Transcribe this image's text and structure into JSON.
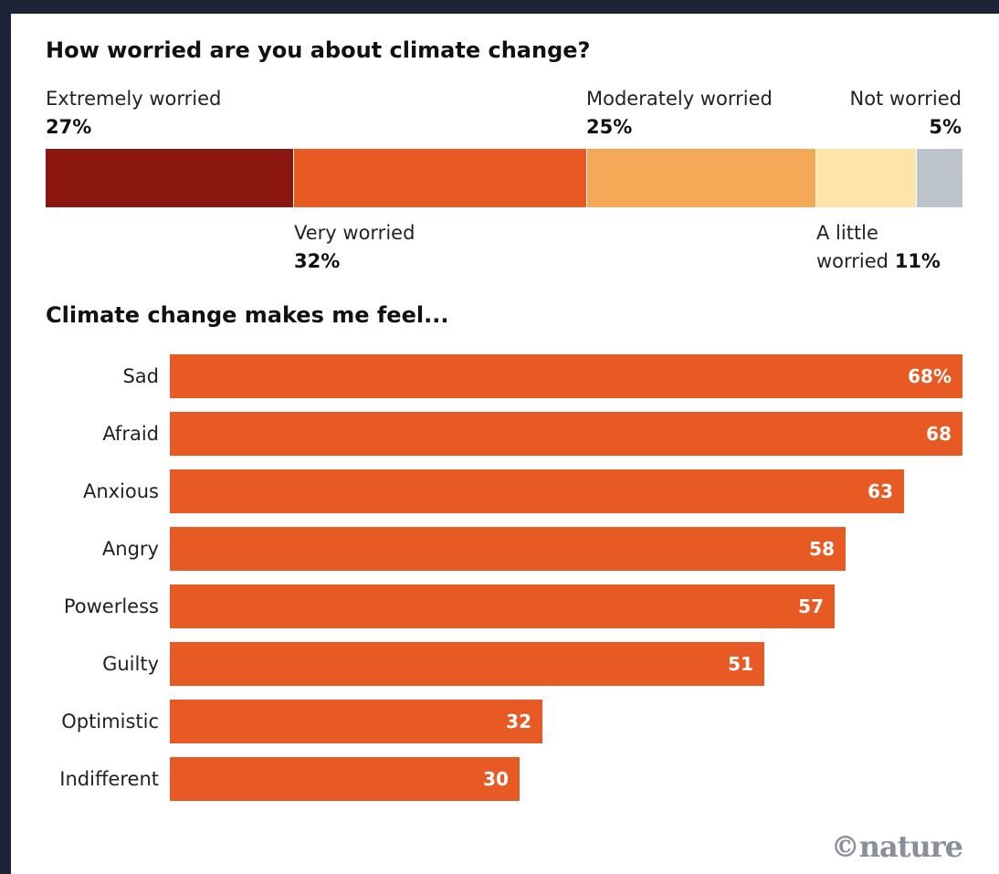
{
  "chart_data": [
    {
      "type": "bar",
      "stacked": true,
      "orientation": "horizontal",
      "title": "How worried are you about climate change?",
      "categories": [
        "Extremely worried",
        "Very worried",
        "Moderately worried",
        "A little worried",
        "Not worried"
      ],
      "values": [
        27,
        32,
        25,
        11,
        5
      ],
      "value_labels": [
        "27%",
        "32%",
        "25%",
        "11%",
        "5%"
      ],
      "colors": [
        "#8b1610",
        "#e85a24",
        "#f5a957",
        "#fee4a8",
        "#bcc3ca"
      ]
    },
    {
      "type": "bar",
      "orientation": "horizontal",
      "title": "Climate change makes me feel...",
      "categories": [
        "Sad",
        "Afraid",
        "Anxious",
        "Angry",
        "Powerless",
        "Guilty",
        "Optimistic",
        "Indifferent"
      ],
      "values": [
        68,
        68,
        63,
        58,
        57,
        51,
        32,
        30
      ],
      "value_labels": [
        "68%",
        "68",
        "63",
        "58",
        "57",
        "51",
        "32",
        "30"
      ],
      "xlim": [
        0,
        68
      ],
      "color": "#e85a24"
    }
  ],
  "logo": "©nature"
}
